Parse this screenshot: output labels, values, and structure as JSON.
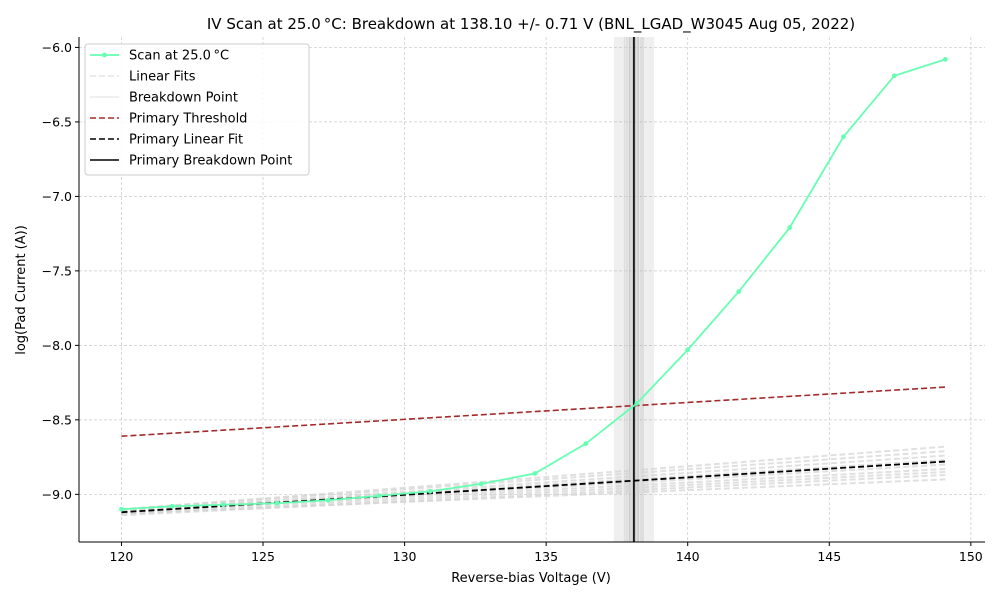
{
  "chart_data": {
    "type": "line",
    "title": "IV Scan at 25.0$^\\circ$C: Breakdown at 138.10 +/- 0.71 V (BNL_LGAD_W3045 Aug 05, 2022)",
    "title_display": "IV Scan at 25.0 °C: Breakdown at 138.10 +/- 0.71 V (BNL_LGAD_W3045 Aug 05, 2022)",
    "xlabel": "Reverse-bias Voltage (V)",
    "ylabel": "log(Pad Current (A))",
    "xlim": [
      118.5,
      150.5
    ],
    "ylim": [
      -9.32,
      -5.93
    ],
    "xticks": [
      120,
      125,
      130,
      135,
      140,
      145,
      150
    ],
    "yticks": [
      -9.0,
      -8.5,
      -8.0,
      -7.5,
      -7.0,
      -6.5,
      -6.0
    ],
    "xtick_labels": [
      "120",
      "125",
      "130",
      "135",
      "140",
      "145",
      "150"
    ],
    "ytick_labels": [
      "−9.0",
      "−8.5",
      "−8.0",
      "−7.5",
      "−7.0",
      "−6.5",
      "−6.0"
    ],
    "grid": true,
    "legend_position": "top-left",
    "colors": {
      "scan": "#66ffb2",
      "linear_fits": "#d3d3d3",
      "breakdown_point": "#ebebeb",
      "primary_threshold": "#a52a2a",
      "primary_linear_fit": "#000000",
      "primary_breakdown": "#000000",
      "band": "#9e9e9e",
      "grid": "#c8c8c8"
    },
    "series": [
      {
        "name": "Scan at 25.0 °C",
        "x": [
          120.0,
          121.8,
          123.6,
          125.5,
          127.3,
          129.1,
          130.9,
          132.7,
          134.6,
          136.4,
          138.2,
          140.0,
          141.8,
          143.6,
          145.5,
          147.3,
          149.1
        ],
        "y": [
          -9.1,
          -9.08,
          -9.07,
          -9.06,
          -9.04,
          -9.01,
          -8.98,
          -8.93,
          -8.86,
          -8.66,
          -8.39,
          -8.03,
          -7.64,
          -7.21,
          -6.6,
          -6.19,
          -6.08
        ]
      }
    ],
    "linear_fits": [
      {
        "y0": -9.14,
        "y1": -8.87
      },
      {
        "y0": -9.13,
        "y1": -8.85
      },
      {
        "y0": -9.12,
        "y1": -8.83
      },
      {
        "y0": -9.12,
        "y1": -8.8
      },
      {
        "y0": -9.11,
        "y1": -8.77
      },
      {
        "y0": -9.11,
        "y1": -8.74
      },
      {
        "y0": -9.1,
        "y1": -8.71
      },
      {
        "y0": -9.1,
        "y1": -8.68
      },
      {
        "y0": -9.13,
        "y1": -8.9
      }
    ],
    "linear_fit_xrange": [
      120.0,
      149.1
    ],
    "breakdown_lines_x": [
      137.8,
      137.9,
      138.0,
      138.2,
      138.3
    ],
    "primary_threshold": {
      "name": "Primary Threshold",
      "x": [
        120.0,
        149.1
      ],
      "y": [
        -8.61,
        -8.28
      ]
    },
    "primary_linear_fit": {
      "name": "Primary Linear Fit",
      "x": [
        120.0,
        149.1
      ],
      "y": [
        -9.12,
        -8.78
      ]
    },
    "primary_breakdown": {
      "name": "Primary Breakdown Point",
      "x": 138.1,
      "uncertainty": 0.71
    },
    "legend": [
      {
        "label": "Scan at 25.0 °C",
        "style": "scan"
      },
      {
        "label": "Linear Fits",
        "style": "linear_fits"
      },
      {
        "label": "Breakdown Point",
        "style": "breakdown_point"
      },
      {
        "label": "Primary Threshold",
        "style": "primary_threshold"
      },
      {
        "label": "Primary Linear Fit",
        "style": "primary_linear_fit"
      },
      {
        "label": "Primary Breakdown Point",
        "style": "primary_breakdown"
      }
    ]
  }
}
